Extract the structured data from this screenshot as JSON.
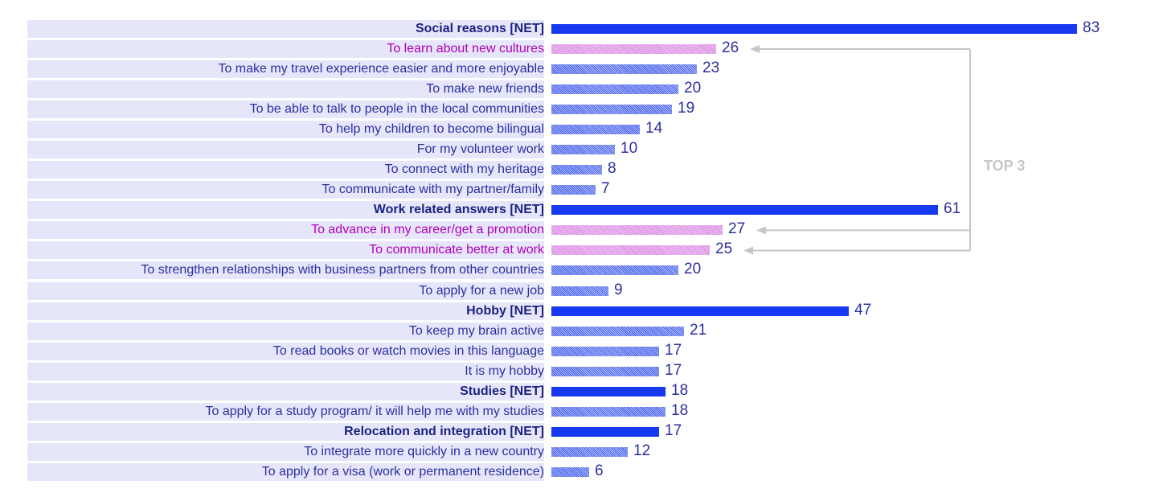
{
  "chart_data": {
    "type": "bar",
    "orientation": "horizontal",
    "categories": [
      "Social reasons [NET]",
      "To learn about new cultures",
      "To make my travel experience easier and more enjoyable",
      "To make new friends",
      "To be able to talk to people in the local communities",
      "To help my children to become bilingual",
      "For my volunteer work",
      "To connect with my heritage",
      "To communicate with my partner/family",
      "Work related answers [NET]",
      "To advance in my career/get a promotion",
      "To communicate better at work",
      "To strengthen relationships with business partners from other countries",
      "To apply for a new job",
      "Hobby [NET]",
      "To keep my brain active",
      "To read books or watch movies in this language",
      "It is my hobby",
      "Studies [NET]",
      "To apply for a study program/ it will help me with my studies",
      "Relocation and integration [NET]",
      "To integrate more quickly in a new country",
      "To apply for a visa (work or permanent residence)"
    ],
    "values": [
      83,
      26,
      23,
      20,
      19,
      14,
      10,
      8,
      7,
      61,
      27,
      25,
      20,
      9,
      47,
      21,
      17,
      17,
      18,
      18,
      17,
      12,
      6
    ],
    "net_rows": [
      0,
      9,
      14,
      18,
      20
    ],
    "top3_rows": [
      1,
      10,
      11
    ],
    "xlim": [
      0,
      83
    ],
    "annotation": "TOP 3",
    "colors": {
      "net_bar": "#1538f0",
      "sub_bar": "#3f5ae8",
      "top3_bar": "#d77de0",
      "label": "#2b2f9e",
      "net_label": "#1d2180",
      "top3_label": "#b000b8",
      "row_background": "#e6e6fb",
      "bracket": "#c6c6c6"
    }
  }
}
